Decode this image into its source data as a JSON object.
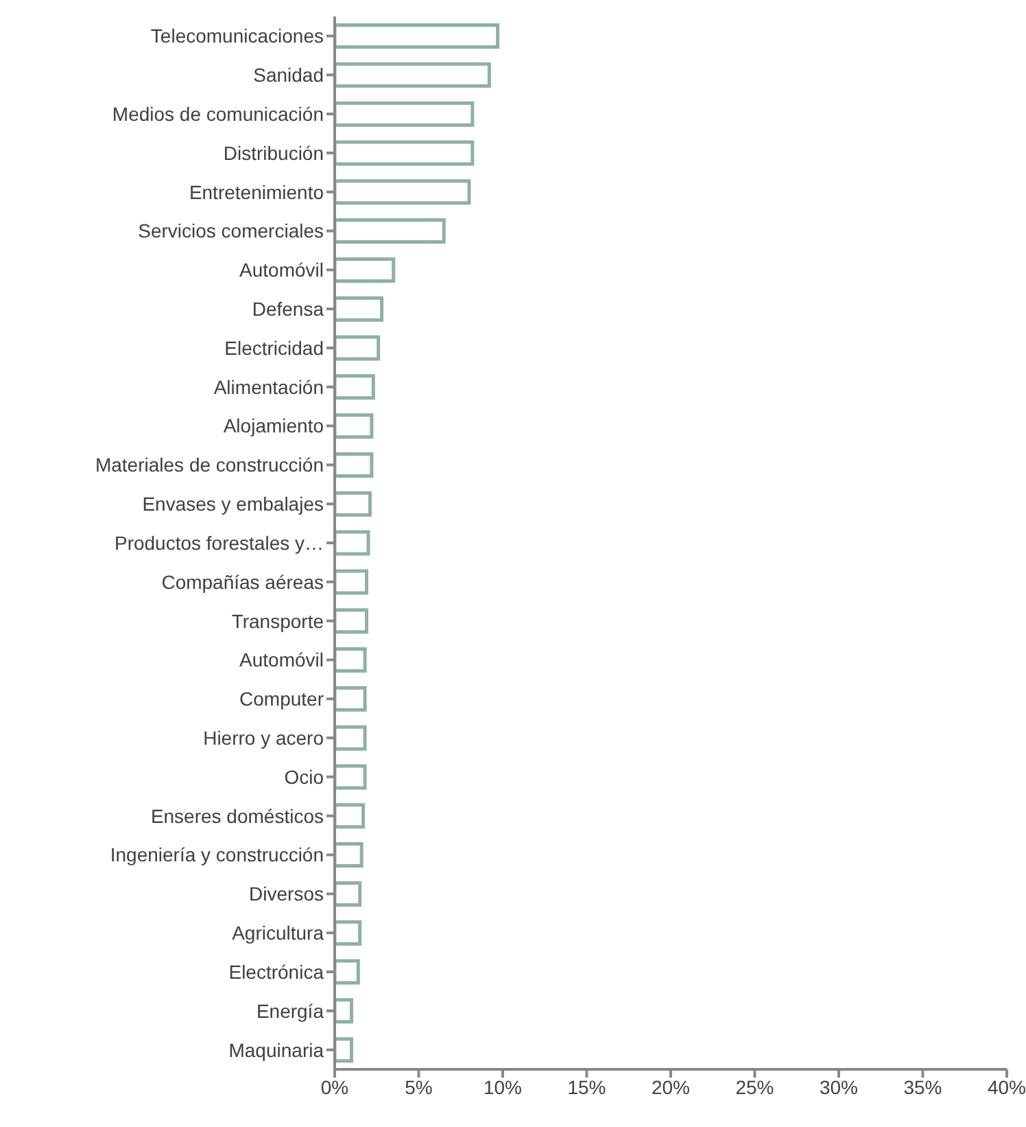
{
  "chart_data": {
    "type": "bar",
    "orientation": "horizontal",
    "categories": [
      "Telecomunicaciones",
      "Sanidad",
      "Medios de comunicación",
      "Distribución ",
      "Entretenimiento",
      "Servicios comerciales",
      "Automóvil",
      "Defensa",
      "Electricidad",
      "Alimentación",
      "Alojamiento",
      "Materiales de construcción",
      "Envases y embalajes",
      "Productos forestales y…",
      "Compañías aéreas",
      "Transporte",
      "Automóvil",
      "Computer",
      "Hierro y acero",
      "Ocio",
      "Enseres domésticos",
      "Ingeniería y construcción",
      "Diversos",
      "Agricultura",
      "Electrónica",
      "Energía",
      "Maquinaria"
    ],
    "values": [
      9.7,
      9.2,
      8.2,
      8.2,
      8.0,
      6.5,
      3.5,
      2.8,
      2.6,
      2.3,
      2.2,
      2.2,
      2.1,
      2.0,
      1.9,
      1.9,
      1.8,
      1.8,
      1.8,
      1.8,
      1.7,
      1.6,
      1.5,
      1.5,
      1.4,
      1.0,
      1.0
    ],
    "color": "#8fb0a3",
    "xlim": [
      0,
      40
    ],
    "xticks": [
      {
        "value": 0,
        "label": "0%"
      },
      {
        "value": 5,
        "label": "5%"
      },
      {
        "value": 10,
        "label": "10%"
      },
      {
        "value": 15,
        "label": "15%"
      },
      {
        "value": 20,
        "label": "20%"
      },
      {
        "value": 25,
        "label": "25%"
      },
      {
        "value": 30,
        "label": "30%"
      },
      {
        "value": 35,
        "label": "35%"
      },
      {
        "value": 40,
        "label": "40%"
      }
    ],
    "grid": false,
    "legend": false
  }
}
